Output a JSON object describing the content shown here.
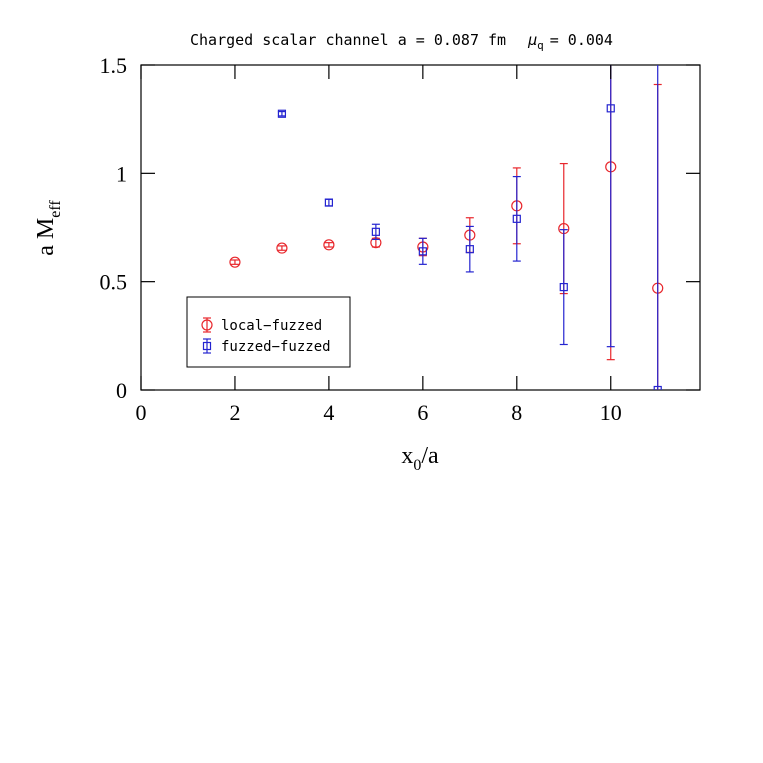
{
  "chart_data": {
    "type": "scatter",
    "title": "Charged scalar channel    a = 0.087 fm",
    "title_mu": "μ",
    "title_mu_sub": "q",
    "title_mu_value": "= 0.004",
    "ylabel": "a  M",
    "ylabel_sub": "eff",
    "xlabel": "x",
    "xlabel_sub": "0",
    "xlabel_rest": "/a",
    "xlim": [
      0,
      11.9
    ],
    "ylim": [
      0,
      1.5
    ],
    "xticks": [
      0,
      2,
      4,
      6,
      8,
      10
    ],
    "yticks": [
      0,
      0.5,
      1,
      1.5
    ],
    "legend": "lower left",
    "series": [
      {
        "name": "local−fuzzed",
        "color": "#e8262b",
        "marker": "circle",
        "x": [
          2,
          3,
          4,
          5,
          6,
          7,
          8,
          9,
          10,
          11
        ],
        "values": [
          0.59,
          0.655,
          0.67,
          0.68,
          0.66,
          0.715,
          0.85,
          0.745,
          1.03,
          0.47
        ],
        "errors": [
          0.01,
          0.01,
          0.01,
          0.02,
          0.04,
          0.08,
          0.175,
          0.3,
          0.89,
          0.94
        ]
      },
      {
        "name": "fuzzed−fuzzed",
        "color": "#2424d0",
        "marker": "square",
        "x": [
          3,
          4,
          5,
          6,
          7,
          8,
          9,
          10,
          11
        ],
        "values": [
          1.275,
          0.865,
          0.73,
          0.64,
          0.65,
          0.79,
          0.475,
          1.3,
          0.0
        ],
        "errors": [
          0.01,
          0.015,
          0.035,
          0.06,
          0.105,
          0.195,
          0.265,
          1.1,
          1.6
        ]
      }
    ]
  }
}
